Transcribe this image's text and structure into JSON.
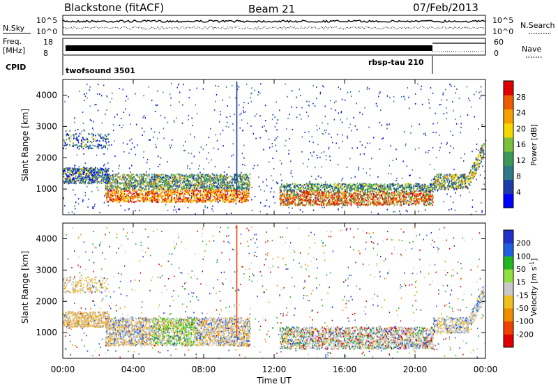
{
  "header": {
    "station": "Blackstone (fitACF)",
    "beam": "Beam 21",
    "date": "07/Feb/2013"
  },
  "small_panels": {
    "nsky_label": "N.Sky",
    "nsearch_label": "N.Search",
    "nsky_ticks": [
      "10^5",
      "10^0"
    ],
    "nsearch_ticks": [
      "10^5",
      "10^0"
    ],
    "freq_label_1": "Freq.",
    "freq_label_2": "[MHz]",
    "freq_ticks": [
      "18",
      "8"
    ],
    "nave_label": "Nave",
    "nave_ticks": [
      "60",
      "0"
    ],
    "cpid_label": "CPID",
    "cpid_1": "twofsound 3501",
    "cpid_2": "rbsp-tau 210"
  },
  "chart_data": [
    {
      "type": "heatmap",
      "title": "",
      "ylabel": "Slant Range [km]",
      "ylim": [
        180,
        4500
      ],
      "yticks": [
        "1000",
        "2000",
        "3000",
        "4000"
      ],
      "colorbar_label": "Power [dB]",
      "colorbar_ticks": [
        "4",
        "8",
        "12",
        "16",
        "20",
        "24",
        "28"
      ],
      "colorbar_range": [
        0,
        30
      ]
    },
    {
      "type": "heatmap",
      "title": "",
      "ylabel": "Slant Range [km]",
      "ylim": [
        180,
        4500
      ],
      "yticks": [
        "1000",
        "2000",
        "3000",
        "4000"
      ],
      "colorbar_label": "Velocity [m s^-1]",
      "colorbar_ticks": [
        "200",
        "100",
        "50",
        "15",
        "-15",
        "-50",
        "-100",
        "-200"
      ]
    }
  ],
  "x_axis": {
    "label": "Time UT",
    "ticks": [
      "00:00",
      "04:00",
      "08:00",
      "12:00",
      "16:00",
      "20:00",
      "00:00"
    ]
  },
  "colors": {
    "power_scale": [
      "#0000ff",
      "#1e3ca8",
      "#2e7a86",
      "#3b9a57",
      "#7ac23c",
      "#f5d800",
      "#f5a000",
      "#f05a00",
      "#e00000"
    ],
    "velocity_scale": [
      "#2030c8",
      "#2060e0",
      "#22b522",
      "#90e040",
      "#c8c8c8",
      "#f0c020",
      "#f08c00",
      "#f04000",
      "#e00000"
    ]
  }
}
